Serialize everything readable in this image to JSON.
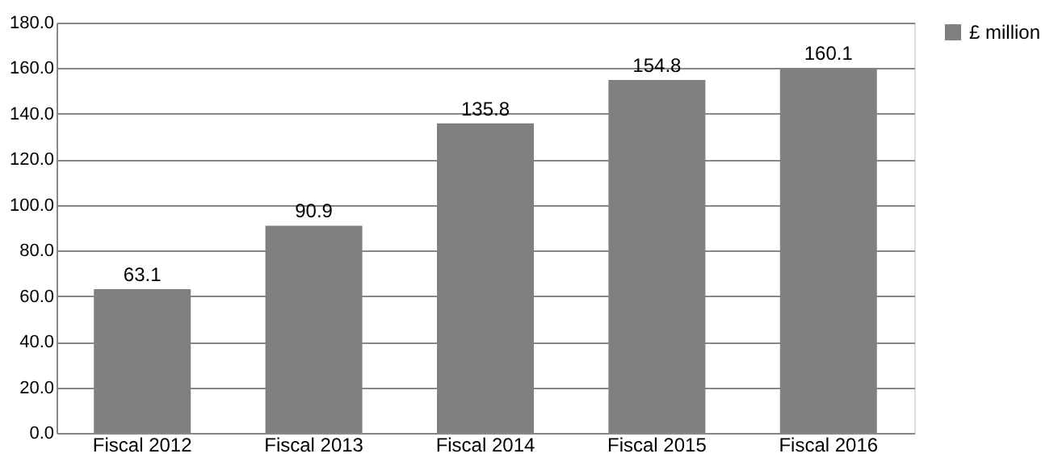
{
  "chart_data": {
    "type": "bar",
    "categories": [
      "Fiscal 2012",
      "Fiscal 2013",
      "Fiscal 2014",
      "Fiscal 2015",
      "Fiscal 2016"
    ],
    "series": [
      {
        "name": "£ million",
        "color": "#808080",
        "values": [
          63.1,
          90.9,
          135.8,
          154.8,
          160.1
        ]
      }
    ],
    "ylim": [
      0,
      180
    ],
    "yticks": [
      {
        "value": 0,
        "label": "0.0"
      },
      {
        "value": 20,
        "label": "20.0"
      },
      {
        "value": 40,
        "label": "40.0"
      },
      {
        "value": 60,
        "label": "60.0"
      },
      {
        "value": 80,
        "label": "80.0"
      },
      {
        "value": 100,
        "label": "100.0"
      },
      {
        "value": 120,
        "label": "120.0"
      },
      {
        "value": 140,
        "label": "140.0"
      },
      {
        "value": 160,
        "label": "160.0"
      },
      {
        "value": 180,
        "label": "180.0"
      }
    ],
    "grid": "y",
    "legend": "right",
    "data_labels": true
  }
}
